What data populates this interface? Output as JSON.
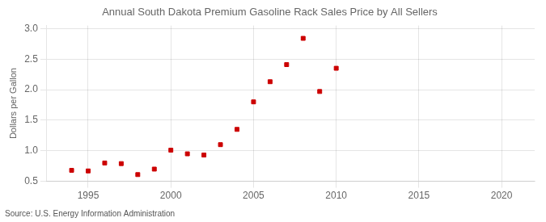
{
  "chart_data": {
    "type": "scatter",
    "title": "Annual South Dakota Premium Gasoline Rack Sales Price by All Sellers",
    "ylabel": "Dollars per Gallon",
    "annotation": "Source: U.S. Energy Information Administration",
    "x": [
      1994,
      1995,
      1996,
      1997,
      1998,
      1999,
      2000,
      2001,
      2002,
      2003,
      2004,
      2005,
      2006,
      2007,
      2008,
      2009,
      2010
    ],
    "values": [
      0.68,
      0.67,
      0.8,
      0.79,
      0.61,
      0.7,
      1.01,
      0.95,
      0.93,
      1.1,
      1.35,
      1.8,
      2.13,
      2.41,
      2.84,
      1.97,
      2.35
    ],
    "color": "#cc0000",
    "marker": "square",
    "xlim": [
      1992.5,
      2022
    ],
    "ylim": [
      0.5,
      3.05
    ],
    "xticks": [
      1995,
      2000,
      2005,
      2010,
      2015,
      2020
    ],
    "yticks": [
      0.5,
      {
        "value": 1.0,
        "label": "1.0"
      },
      1.5,
      {
        "value": 2.0,
        "label": "2.0"
      },
      2.5,
      {
        "value": 3.0,
        "label": "3.0"
      }
    ],
    "grid": true
  }
}
